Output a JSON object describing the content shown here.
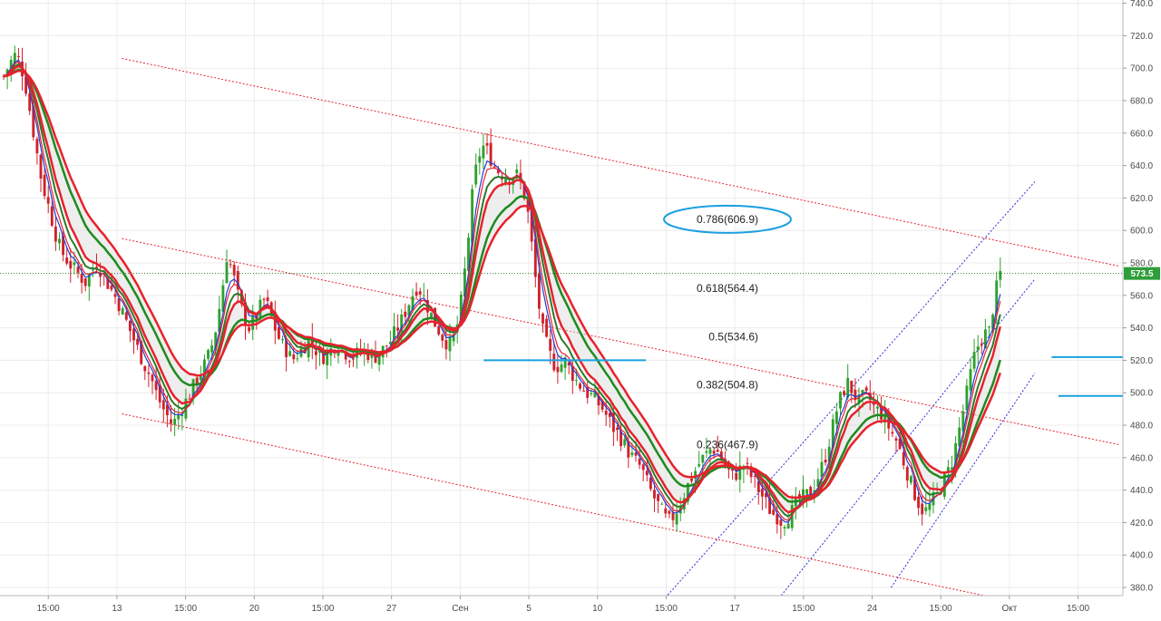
{
  "chart_data": {
    "type": "candlestick",
    "y_axis": {
      "ticks": [
        "740.0",
        "720.0",
        "700.0",
        "680.0",
        "660.0",
        "640.0",
        "620.0",
        "600.0",
        "580.0",
        "560.0",
        "540.0",
        "520.0",
        "500.0",
        "480.0",
        "460.0",
        "440.0",
        "420.0",
        "400.0",
        "380.0"
      ],
      "range": [
        375,
        742
      ],
      "side": "right"
    },
    "x_axis": {
      "ticks": [
        "15:00",
        "13",
        "15:00",
        "20",
        "15:00",
        "27",
        "Сен",
        "5",
        "10",
        "15:00",
        "17",
        "15:00",
        "24",
        "15:00",
        "Окт",
        "15:00"
      ],
      "range_bars": [
        0,
        300
      ]
    },
    "current_price": {
      "label": "573.5",
      "value": 573.5
    },
    "fibonacci_levels": [
      {
        "label": "0.786(606.9)",
        "value": 606.9,
        "circled": true
      },
      {
        "label": "0.618(564.4)",
        "value": 564.4
      },
      {
        "label": "0.5(534.6)",
        "value": 534.6
      },
      {
        "label": "0.382(504.8)",
        "value": 504.8
      },
      {
        "label": "0.236(467.9)",
        "value": 467.9
      }
    ],
    "closes": [
      695,
      702,
      708,
      704,
      690,
      670,
      650,
      630,
      618,
      605,
      592,
      585,
      580,
      576,
      572,
      568,
      574,
      580,
      575,
      568,
      562,
      556,
      548,
      540,
      532,
      524,
      516,
      510,
      500,
      492,
      486,
      480,
      486,
      492,
      498,
      505,
      512,
      518,
      526,
      540,
      560,
      585,
      575,
      560,
      548,
      540,
      544,
      552,
      558,
      548,
      538,
      530,
      526,
      520,
      524,
      528,
      532,
      528,
      524,
      522,
      526,
      530,
      528,
      524,
      522,
      524,
      526,
      524,
      522,
      524,
      528,
      532,
      538,
      544,
      552,
      560,
      566,
      560,
      552,
      544,
      538,
      532,
      530,
      536,
      556,
      584,
      620,
      644,
      652,
      648,
      640,
      636,
      634,
      632,
      636,
      628,
      618,
      590,
      560,
      538,
      526,
      518,
      516,
      520,
      514,
      508,
      504,
      500,
      498,
      494,
      490,
      484,
      478,
      474,
      468,
      462,
      458,
      454,
      446,
      438,
      432,
      426,
      420,
      424,
      430,
      438,
      446,
      452,
      458,
      462,
      466,
      464,
      458,
      452,
      448,
      452,
      456,
      450,
      444,
      438,
      432,
      426,
      424,
      420,
      424,
      428,
      434,
      436,
      438,
      444,
      452,
      462,
      476,
      490,
      500,
      506,
      500,
      494,
      498,
      496,
      490,
      488,
      482,
      476,
      470,
      460,
      450,
      440,
      432,
      426,
      430,
      436,
      442,
      448,
      456,
      470,
      486,
      502,
      520,
      530,
      536,
      538,
      560,
      573.5
    ],
    "series": [
      {
        "color": "#e8212d",
        "period": "fast"
      },
      {
        "color": "#e8212d",
        "period": "medium"
      },
      {
        "color": "#e8212d",
        "period": "slow"
      },
      {
        "color": "#1f8a1f",
        "period": "green-fast"
      },
      {
        "color": "#1f8a1f",
        "period": "green-slow"
      },
      {
        "color": "#1a3fd8",
        "period": "blue"
      }
    ],
    "trend_channel_red": [
      {
        "from": [
          70,
          706
        ],
        "to": [
          660,
          578
        ]
      },
      {
        "from": [
          70,
          595
        ],
        "to": [
          660,
          468
        ]
      },
      {
        "from": [
          70,
          487
        ],
        "to": [
          580,
          375
        ]
      }
    ],
    "trend_channel_blue": [
      {
        "from": [
          390,
          372
        ],
        "to": [
          610,
          630
        ]
      },
      {
        "from": [
          460,
          375
        ],
        "to": [
          610,
          570
        ]
      },
      {
        "from": [
          525,
          380
        ],
        "to": [
          610,
          512
        ]
      }
    ],
    "horizontal_segments_blue": [
      {
        "from": 142,
        "to": 190,
        "value": 520
      },
      {
        "from": 310,
        "to": 342,
        "value": 522
      },
      {
        "from": 312,
        "to": 342,
        "value": 498
      },
      {
        "from": 470,
        "to": 570,
        "value": 513
      },
      {
        "from": 470,
        "to": 492,
        "value": 499
      }
    ]
  }
}
